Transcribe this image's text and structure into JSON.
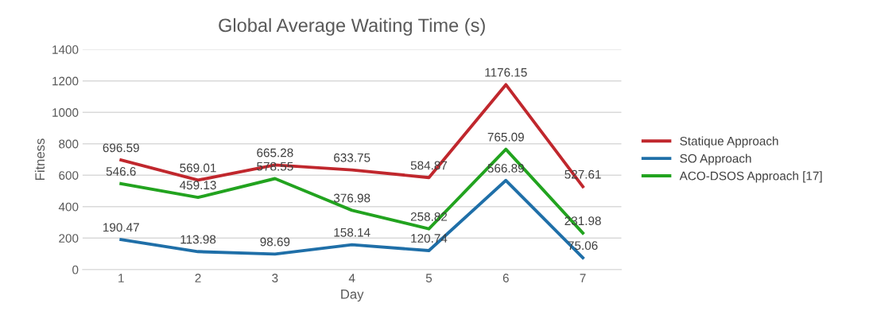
{
  "chart_data": {
    "type": "line",
    "title": "Global Average Waiting Time (s)",
    "xlabel": "Day",
    "ylabel": "Fitness",
    "categories": [
      "1",
      "2",
      "3",
      "4",
      "5",
      "6",
      "7"
    ],
    "series": [
      {
        "name": "Statique Approach",
        "color": "#c0272d",
        "values": [
          696.59,
          569.01,
          665.28,
          633.75,
          584.87,
          1176.15,
          527.61
        ]
      },
      {
        "name": "SO Approach",
        "color": "#1f6fa8",
        "values": [
          190.47,
          113.98,
          98.69,
          158.14,
          120.74,
          566.89,
          75.06
        ]
      },
      {
        "name": "ACO-DSOS Approach [17]",
        "color": "#22a31f",
        "values": [
          546.6,
          459.13,
          578.55,
          376.98,
          258.82,
          765.09,
          231.98
        ]
      }
    ],
    "ylim": [
      0,
      1400
    ],
    "yticks": [
      0,
      200,
      400,
      600,
      800,
      1000,
      1200,
      1400
    ],
    "grid": "y",
    "legend": "right",
    "data_labels": true,
    "marker": "none",
    "line_style": "solid"
  }
}
